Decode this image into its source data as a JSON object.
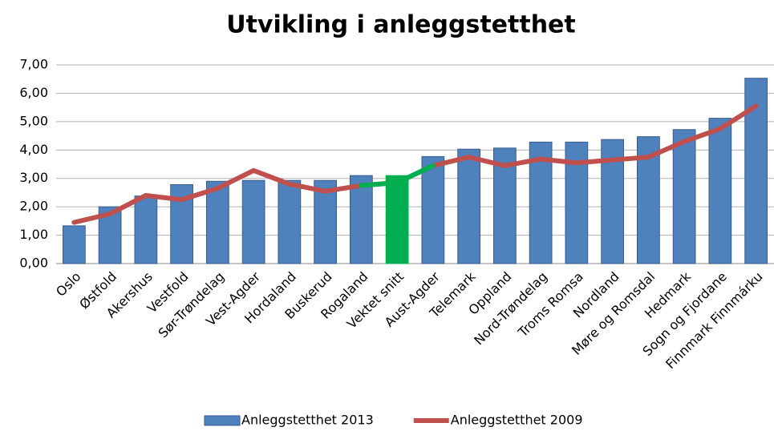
{
  "chart_data": {
    "type": "bar-line",
    "title": "Utvikling i anleggstetthet",
    "categories": [
      "Oslo",
      "Østfold",
      "Akershus",
      "Vestfold",
      "Sør-Trøndelag",
      "Vest-Agder",
      "Hordaland",
      "Buskerud",
      "Rogaland",
      "Vektet snitt",
      "Aust-Agder",
      "Telemark",
      "Oppland",
      "Nord-Trøndelag",
      "Troms Romsa",
      "Nordland",
      "Møre og Romsdal",
      "Hedmark",
      "Sogn og Fjordane",
      "Finnmark Finnmárku"
    ],
    "series": [
      {
        "name": "Anleggstetthet 2013",
        "type": "bar",
        "color": "#4f81bd",
        "values": [
          1.33,
          2.0,
          2.38,
          2.78,
          2.9,
          2.93,
          2.93,
          2.93,
          3.1,
          3.1,
          3.77,
          4.03,
          4.07,
          4.28,
          4.28,
          4.37,
          4.47,
          4.72,
          5.12,
          6.53
        ]
      },
      {
        "name": "Anleggstetthet 2009",
        "type": "line",
        "color": "#c0504d",
        "values": [
          1.45,
          1.75,
          2.4,
          2.25,
          2.65,
          3.28,
          2.8,
          2.55,
          2.75,
          2.85,
          3.45,
          3.75,
          3.45,
          3.68,
          3.55,
          3.65,
          3.75,
          4.3,
          4.75,
          5.55
        ]
      }
    ],
    "highlight": {
      "index": 9,
      "color": "#00b050"
    },
    "ylim": [
      0,
      7
    ],
    "yticks": [
      {
        "value": 0,
        "label": "0,00"
      },
      {
        "value": 1,
        "label": "1,00"
      },
      {
        "value": 2,
        "label": "2,00"
      },
      {
        "value": 3,
        "label": "3,00"
      },
      {
        "value": 4,
        "label": "4,00"
      },
      {
        "value": 5,
        "label": "5,00"
      },
      {
        "value": 6,
        "label": "6,00"
      },
      {
        "value": 7,
        "label": "7,00"
      }
    ],
    "grid": true,
    "legend": "bottom"
  }
}
